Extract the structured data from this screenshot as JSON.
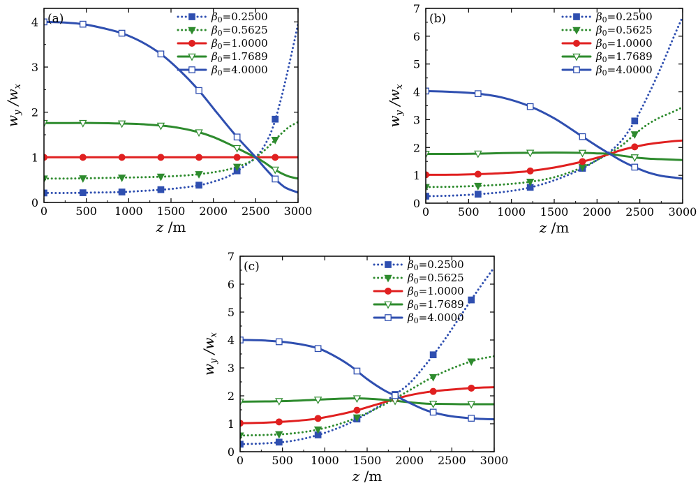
{
  "legend_prefix": "β",
  "legend_sub": "0",
  "xlabel_var": "z",
  "xlabel_unit": " /m",
  "ylabel_num": "w",
  "ylabel_num_sub": "y",
  "ylabel_den": "w",
  "ylabel_den_sub": "x",
  "series_style": [
    {
      "color": "#2f4fb0",
      "dash": "dotted",
      "marker": "square-filled"
    },
    {
      "color": "#2e8b2e",
      "dash": "dotted",
      "marker": "triangle-down-filled"
    },
    {
      "color": "#e02020",
      "dash": "solid",
      "marker": "circle-filled"
    },
    {
      "color": "#2e8b2e",
      "dash": "solid",
      "marker": "triangle-down-open"
    },
    {
      "color": "#2f4fb0",
      "dash": "solid",
      "marker": "square-open"
    }
  ],
  "chart_data": [
    {
      "type": "line",
      "panel_label": "(a)",
      "xlim": [
        0,
        3000
      ],
      "ylim": [
        0,
        4.3
      ],
      "xticks": [
        "0",
        "500",
        "1000",
        "1500",
        "2000",
        "2500",
        "3000"
      ],
      "yticks": [
        "0",
        "1",
        "2",
        "3",
        "4"
      ],
      "legend_placement": "top-right",
      "series": [
        {
          "name": "=0.2500",
          "x": [
            0,
            300,
            600,
            900,
            1200,
            1500,
            1800,
            2000,
            2200,
            2400,
            2500,
            2600,
            2700,
            2800,
            2900,
            3000
          ],
          "y": [
            0.21,
            0.21,
            0.22,
            0.23,
            0.26,
            0.3,
            0.37,
            0.46,
            0.6,
            0.85,
            1.0,
            1.25,
            1.65,
            2.3,
            3.1,
            3.95
          ]
        },
        {
          "name": "=0.5625",
          "x": [
            0,
            300,
            600,
            900,
            1200,
            1500,
            1800,
            2100,
            2300,
            2450,
            2500,
            2600,
            2700,
            2800,
            2900,
            3000
          ],
          "y": [
            0.53,
            0.53,
            0.54,
            0.55,
            0.56,
            0.58,
            0.62,
            0.7,
            0.8,
            0.92,
            1.0,
            1.15,
            1.33,
            1.52,
            1.68,
            1.78
          ]
        },
        {
          "name": "=1.0000",
          "x": [
            0,
            3000
          ],
          "y": [
            1.0,
            1.0
          ]
        },
        {
          "name": "=1.7689",
          "x": [
            0,
            300,
            600,
            900,
            1200,
            1500,
            1800,
            2000,
            2200,
            2400,
            2500,
            2600,
            2700,
            2800,
            2900,
            3000
          ],
          "y": [
            1.76,
            1.76,
            1.76,
            1.75,
            1.73,
            1.68,
            1.57,
            1.45,
            1.28,
            1.09,
            1.0,
            0.89,
            0.76,
            0.65,
            0.57,
            0.53
          ]
        },
        {
          "name": "=4.0000",
          "x": [
            0,
            200,
            460,
            700,
            920,
            1150,
            1380,
            1600,
            1830,
            2050,
            2280,
            2500,
            2600,
            2730,
            2850,
            3000
          ],
          "y": [
            4.0,
            3.99,
            3.95,
            3.86,
            3.75,
            3.56,
            3.29,
            2.93,
            2.48,
            1.97,
            1.45,
            1.0,
            0.78,
            0.52,
            0.33,
            0.22
          ]
        }
      ],
      "markers_x": [
        0,
        460,
        920,
        1380,
        1830,
        2280,
        2730
      ]
    },
    {
      "type": "line",
      "panel_label": "(b)",
      "xlim": [
        0,
        3000
      ],
      "ylim": [
        0,
        7
      ],
      "xticks": [
        "0",
        "500",
        "1000",
        "1500",
        "2000",
        "2500",
        "3000"
      ],
      "yticks": [
        "0",
        "1",
        "2",
        "3",
        "4",
        "5",
        "6",
        "7"
      ],
      "legend_placement": "top-right",
      "series": [
        {
          "name": "=0.2500",
          "x": [
            0,
            300,
            600,
            900,
            1200,
            1500,
            1800,
            2000,
            2150,
            2300,
            2450,
            2600,
            2750,
            2900,
            3000
          ],
          "y": [
            0.25,
            0.27,
            0.32,
            0.4,
            0.55,
            0.82,
            1.2,
            1.55,
            1.85,
            2.3,
            3.0,
            3.9,
            4.9,
            6.0,
            6.7
          ]
        },
        {
          "name": "=0.5625",
          "x": [
            0,
            300,
            600,
            900,
            1200,
            1500,
            1800,
            2000,
            2150,
            2300,
            2450,
            2600,
            2750,
            2900,
            3000
          ],
          "y": [
            0.58,
            0.59,
            0.62,
            0.67,
            0.76,
            0.93,
            1.25,
            1.55,
            1.8,
            2.1,
            2.5,
            2.85,
            3.1,
            3.3,
            3.45
          ]
        },
        {
          "name": "=1.0000",
          "x": [
            0,
            300,
            600,
            900,
            1200,
            1500,
            1800,
            2000,
            2150,
            2300,
            2450,
            2600,
            2750,
            2900,
            3000
          ],
          "y": [
            1.02,
            1.02,
            1.04,
            1.08,
            1.15,
            1.28,
            1.47,
            1.63,
            1.77,
            1.92,
            2.03,
            2.12,
            2.18,
            2.23,
            2.25
          ]
        },
        {
          "name": "=1.7689",
          "x": [
            0,
            300,
            600,
            900,
            1200,
            1500,
            1800,
            2000,
            2150,
            2300,
            2450,
            2600,
            2750,
            2900,
            3000
          ],
          "y": [
            1.77,
            1.77,
            1.78,
            1.8,
            1.81,
            1.82,
            1.81,
            1.79,
            1.77,
            1.7,
            1.64,
            1.6,
            1.58,
            1.56,
            1.55
          ]
        },
        {
          "name": "=4.0000",
          "x": [
            0,
            300,
            600,
            900,
            1200,
            1500,
            1800,
            2000,
            2150,
            2300,
            2450,
            2600,
            2750,
            2900,
            3000
          ],
          "y": [
            4.03,
            4.0,
            3.94,
            3.79,
            3.5,
            3.05,
            2.45,
            2.05,
            1.77,
            1.5,
            1.28,
            1.1,
            0.98,
            0.92,
            0.88
          ]
        }
      ],
      "markers_x": [
        0,
        610,
        1220,
        1830,
        2440
      ]
    },
    {
      "type": "line",
      "panel_label": "(c)",
      "xlim": [
        0,
        3000
      ],
      "ylim": [
        0,
        7
      ],
      "xticks": [
        "0",
        "500",
        "1000",
        "1500",
        "2000",
        "2500",
        "3000"
      ],
      "yticks": [
        "0",
        "1",
        "2",
        "3",
        "4",
        "5",
        "6",
        "7"
      ],
      "legend_placement": "top-right",
      "series": [
        {
          "name": "=0.2500",
          "x": [
            0,
            300,
            600,
            900,
            1200,
            1400,
            1600,
            1800,
            2000,
            2200,
            2400,
            2600,
            2800,
            3000
          ],
          "y": [
            0.27,
            0.3,
            0.38,
            0.58,
            0.9,
            1.2,
            1.55,
            1.98,
            2.45,
            3.15,
            3.95,
            4.85,
            5.75,
            6.6
          ]
        },
        {
          "name": "=0.5625",
          "x": [
            0,
            300,
            600,
            900,
            1200,
            1400,
            1600,
            1800,
            2000,
            2200,
            2400,
            2600,
            2800,
            3000
          ],
          "y": [
            0.58,
            0.6,
            0.65,
            0.78,
            1.02,
            1.25,
            1.53,
            1.85,
            2.2,
            2.55,
            2.85,
            3.1,
            3.3,
            3.42
          ]
        },
        {
          "name": "=1.0000",
          "x": [
            0,
            300,
            600,
            900,
            1200,
            1400,
            1600,
            1800,
            2000,
            2200,
            2400,
            2600,
            2800,
            3000
          ],
          "y": [
            1.02,
            1.04,
            1.09,
            1.18,
            1.35,
            1.5,
            1.68,
            1.86,
            2.02,
            2.13,
            2.2,
            2.25,
            2.29,
            2.31
          ]
        },
        {
          "name": "=1.7689",
          "x": [
            0,
            300,
            600,
            900,
            1200,
            1400,
            1600,
            1800,
            2000,
            2200,
            2400,
            2600,
            2800,
            3000
          ],
          "y": [
            1.79,
            1.8,
            1.82,
            1.86,
            1.9,
            1.91,
            1.88,
            1.83,
            1.77,
            1.72,
            1.71,
            1.7,
            1.7,
            1.7
          ]
        },
        {
          "name": "=4.0000",
          "x": [
            0,
            300,
            600,
            900,
            1100,
            1300,
            1500,
            1700,
            1850,
            2000,
            2200,
            2400,
            2600,
            2800,
            3000
          ],
          "y": [
            4.0,
            3.98,
            3.9,
            3.72,
            3.45,
            3.08,
            2.6,
            2.2,
            1.98,
            1.75,
            1.48,
            1.32,
            1.23,
            1.18,
            1.16
          ]
        }
      ],
      "markers_x": [
        0,
        460,
        920,
        1380,
        1830,
        2280,
        2730
      ]
    }
  ]
}
